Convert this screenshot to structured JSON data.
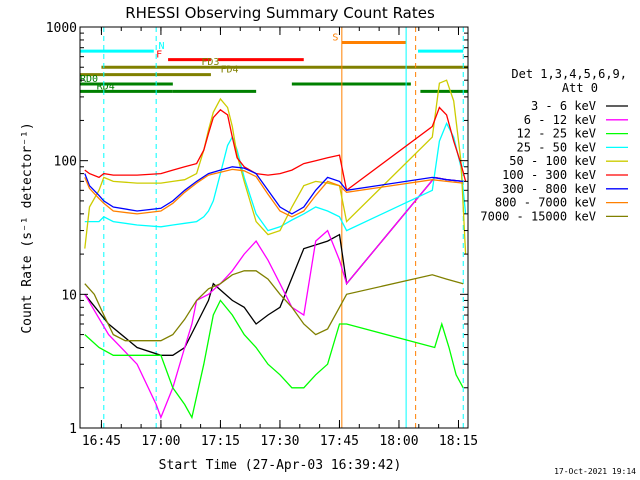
{
  "chart_data": {
    "type": "line",
    "title": "RHESSI Observing Summary Count Rates",
    "xlabel": "Start Time (27-Apr-03 16:39:42)",
    "ylabel": "Count Rate (s⁻¹ detector⁻¹)",
    "ylim": [
      1,
      1000
    ],
    "yscale": "log",
    "xlim": [
      16.66,
      18.29
    ],
    "x_unit": "hours UT",
    "x_ticks": [
      {
        "v": 16.75,
        "label": "16:45"
      },
      {
        "v": 17.0,
        "label": "17:00"
      },
      {
        "v": 17.25,
        "label": "17:15"
      },
      {
        "v": 17.5,
        "label": "17:30"
      },
      {
        "v": 17.75,
        "label": "17:45"
      },
      {
        "v": 18.0,
        "label": "18:00"
      },
      {
        "v": 18.25,
        "label": "18:15"
      }
    ],
    "y_ticks": [
      {
        "v": 1,
        "label": "1"
      },
      {
        "v": 10,
        "label": "10"
      },
      {
        "v": 100,
        "label": "100"
      },
      {
        "v": 1000,
        "label": "1000"
      }
    ],
    "legend_header": [
      "Det 1,3,4,5,6,9,",
      "Att 0"
    ],
    "legend_position": "right",
    "date_stamp": "17-Oct-2021 19:14",
    "series": [
      {
        "name": "3 - 6 keV",
        "color": "#000000",
        "x": [
          16.68,
          16.78,
          16.9,
          17.0,
          17.05,
          17.1,
          17.15,
          17.2,
          17.22,
          17.3,
          17.35,
          17.4,
          17.45,
          17.5,
          17.6,
          17.7,
          17.75,
          17.78,
          18.15,
          18.2,
          18.27
        ],
        "y": [
          10,
          6,
          4,
          3.5,
          3.5,
          4,
          6,
          9,
          12,
          9,
          8,
          6,
          7,
          8,
          22,
          25,
          28,
          12,
          75,
          72,
          70
        ]
      },
      {
        "name": "6 - 12 keV",
        "color": "#ff00ff",
        "x": [
          16.68,
          16.78,
          16.9,
          16.98,
          17.0,
          17.05,
          17.1,
          17.13,
          17.15,
          17.2,
          17.25,
          17.3,
          17.35,
          17.4,
          17.45,
          17.5,
          17.55,
          17.6,
          17.65,
          17.7,
          17.75,
          17.78,
          18.15,
          18.2,
          18.27
        ],
        "y": [
          10,
          5,
          3,
          1.5,
          1.2,
          2,
          4,
          6,
          9,
          10,
          12,
          15,
          20,
          25,
          18,
          12,
          8,
          7,
          25,
          30,
          18,
          12,
          75,
          72,
          70
        ]
      },
      {
        "name": "12 - 25 keV",
        "color": "#00ff00",
        "x": [
          16.68,
          16.74,
          16.8,
          16.9,
          17.0,
          17.05,
          17.1,
          17.13,
          17.18,
          17.22,
          17.25,
          17.3,
          17.35,
          17.4,
          17.45,
          17.5,
          17.55,
          17.6,
          17.65,
          17.7,
          17.75,
          17.78,
          18.15,
          18.18,
          18.21,
          18.24,
          18.27
        ],
        "y": [
          5,
          4,
          3.5,
          3.5,
          3.5,
          2,
          1.5,
          1.2,
          3,
          7,
          9,
          7,
          5,
          4,
          3,
          2.5,
          2,
          2,
          2.5,
          3,
          6,
          6,
          4,
          6,
          4,
          2.5,
          2
        ]
      },
      {
        "name": "25 - 50 keV",
        "color": "#00ffff",
        "x": [
          16.68,
          16.7,
          16.74,
          16.76,
          16.8,
          16.9,
          17.0,
          17.05,
          17.1,
          17.15,
          17.18,
          17.2,
          17.22,
          17.25,
          17.28,
          17.3,
          17.32,
          17.35,
          17.4,
          17.45,
          17.5,
          17.55,
          17.6,
          17.65,
          17.7,
          17.75,
          17.78,
          18.14,
          18.17,
          18.2,
          18.23,
          18.26,
          18.28
        ],
        "y": [
          35,
          35,
          35,
          38,
          35,
          33,
          32,
          33,
          34,
          35,
          38,
          42,
          50,
          80,
          130,
          150,
          120,
          75,
          40,
          30,
          32,
          36,
          40,
          45,
          42,
          38,
          30,
          60,
          140,
          190,
          150,
          90,
          40
        ]
      },
      {
        "name": "50 - 100 keV",
        "color": "#cccc00",
        "x": [
          16.68,
          16.7,
          16.74,
          16.76,
          16.8,
          16.9,
          17.0,
          17.05,
          17.1,
          17.15,
          17.18,
          17.2,
          17.22,
          17.25,
          17.28,
          17.3,
          17.32,
          17.35,
          17.4,
          17.45,
          17.5,
          17.55,
          17.6,
          17.65,
          17.7,
          17.75,
          17.78,
          18.14,
          18.17,
          18.2,
          18.23,
          18.26,
          18.28
        ],
        "y": [
          22,
          45,
          60,
          75,
          70,
          68,
          68,
          70,
          72,
          80,
          120,
          170,
          230,
          290,
          250,
          180,
          110,
          70,
          35,
          28,
          30,
          45,
          65,
          70,
          68,
          65,
          35,
          150,
          380,
          400,
          280,
          100,
          20
        ]
      },
      {
        "name": "100 - 300 keV",
        "color": "#ff0000",
        "x": [
          16.68,
          16.7,
          16.74,
          16.76,
          16.8,
          16.9,
          17.0,
          17.05,
          17.1,
          17.15,
          17.18,
          17.2,
          17.22,
          17.25,
          17.28,
          17.3,
          17.32,
          17.35,
          17.4,
          17.45,
          17.5,
          17.55,
          17.6,
          17.65,
          17.7,
          17.75,
          17.78,
          18.14,
          18.17,
          18.2,
          18.23,
          18.26,
          18.28
        ],
        "y": [
          85,
          80,
          75,
          80,
          78,
          78,
          80,
          85,
          90,
          95,
          120,
          160,
          210,
          240,
          220,
          150,
          105,
          90,
          80,
          78,
          80,
          85,
          95,
          100,
          105,
          110,
          60,
          180,
          250,
          220,
          140,
          95,
          70
        ]
      },
      {
        "name": "300 - 800 keV",
        "color": "#0000ff",
        "x": [
          16.68,
          16.7,
          16.74,
          16.76,
          16.8,
          16.9,
          17.0,
          17.05,
          17.1,
          17.15,
          17.2,
          17.25,
          17.3,
          17.35,
          17.4,
          17.45,
          17.5,
          17.55,
          17.6,
          17.65,
          17.7,
          17.75,
          17.78,
          18.14,
          18.2,
          18.27
        ],
        "y": [
          80,
          65,
          55,
          50,
          45,
          42,
          44,
          50,
          60,
          70,
          80,
          85,
          90,
          88,
          80,
          60,
          45,
          40,
          45,
          60,
          75,
          70,
          60,
          75,
          72,
          70
        ]
      },
      {
        "name": "800 - 7000 keV",
        "color": "#ff8000",
        "x": [
          16.68,
          16.7,
          16.74,
          16.76,
          16.8,
          16.9,
          17.0,
          17.05,
          17.1,
          17.15,
          17.2,
          17.25,
          17.3,
          17.35,
          17.4,
          17.45,
          17.5,
          17.55,
          17.6,
          17.65,
          17.7,
          17.75,
          17.78,
          18.14,
          18.2,
          18.27
        ],
        "y": [
          75,
          62,
          52,
          48,
          42,
          40,
          42,
          48,
          58,
          68,
          78,
          82,
          86,
          84,
          76,
          56,
          42,
          38,
          42,
          55,
          70,
          65,
          58,
          72,
          70,
          68
        ]
      },
      {
        "name": "7000 - 15000 keV",
        "color": "#808000",
        "x": [
          16.68,
          16.72,
          16.76,
          16.8,
          16.85,
          16.9,
          16.95,
          17.0,
          17.05,
          17.1,
          17.15,
          17.2,
          17.25,
          17.3,
          17.35,
          17.4,
          17.45,
          17.5,
          17.55,
          17.6,
          17.65,
          17.7,
          17.75,
          17.78,
          18.14,
          18.2,
          18.27
        ],
        "y": [
          12,
          10,
          7,
          5,
          4.5,
          4.5,
          4.5,
          4.5,
          5,
          6.5,
          9,
          11,
          12,
          14,
          15,
          15,
          13,
          10,
          8,
          6,
          5,
          5.5,
          8,
          10,
          14,
          13,
          12
        ]
      }
    ],
    "flag_bars": [
      {
        "label": "N",
        "color": "#00ffff",
        "x0": 16.66,
        "x1": 16.97,
        "y": 660,
        "label_x": 16.99
      },
      {
        "label": "N",
        "color": "#00ffff",
        "x0": 18.08,
        "x1": 18.27,
        "y": 660,
        "label_x": null
      },
      {
        "label": "F",
        "color": "#ff0000",
        "x0": 17.03,
        "x1": 17.21,
        "y": 570,
        "label_x": 16.98
      },
      {
        "label": "F",
        "color": "#ff0000",
        "x0": 17.24,
        "x1": 17.6,
        "y": 570,
        "label_x": null
      },
      {
        "label": "S",
        "color": "#ff8000",
        "x0": 17.76,
        "x1": 18.03,
        "y": 765,
        "label_x": 17.72
      },
      {
        "label": "FD3",
        "color": "#808000",
        "x0": 16.75,
        "x1": 17.21,
        "y": 500,
        "label_x": 17.17
      },
      {
        "label": "FD4",
        "color": "#808000",
        "x0": 17.21,
        "x1": 18.29,
        "y": 500,
        "label_x": null
      },
      {
        "label": "FD4",
        "color": "#808000",
        "x0": 16.66,
        "x1": 17.21,
        "y": 440,
        "label_x": 17.25
      },
      {
        "label": "RD0",
        "color": "#008000",
        "x0": 16.66,
        "x1": 17.05,
        "y": 375,
        "label_x": 16.66
      },
      {
        "label": "RD0",
        "color": "#008000",
        "x0": 17.55,
        "x1": 18.05,
        "y": 375,
        "label_x": null
      },
      {
        "label": "RD4",
        "color": "#008000",
        "x0": 16.66,
        "x1": 17.05,
        "y": 330,
        "label_x": 16.73
      },
      {
        "label": "RD4",
        "color": "#008000",
        "x0": 17.05,
        "x1": 17.4,
        "y": 330,
        "label_x": null
      },
      {
        "label": "RD4",
        "color": "#008000",
        "x0": 18.09,
        "x1": 18.29,
        "y": 330,
        "label_x": null
      }
    ],
    "vlines": [
      {
        "x": 16.76,
        "color": "#00ffff",
        "style": "dashed"
      },
      {
        "x": 16.98,
        "color": "#00ffff",
        "style": "dashed"
      },
      {
        "x": 17.76,
        "color": "#ff8000",
        "style": "solid"
      },
      {
        "x": 18.03,
        "color": "#00ffff",
        "style": "solid"
      },
      {
        "x": 18.07,
        "color": "#ff8000",
        "style": "dashed"
      },
      {
        "x": 18.27,
        "color": "#00ffff",
        "style": "dashed"
      }
    ]
  }
}
